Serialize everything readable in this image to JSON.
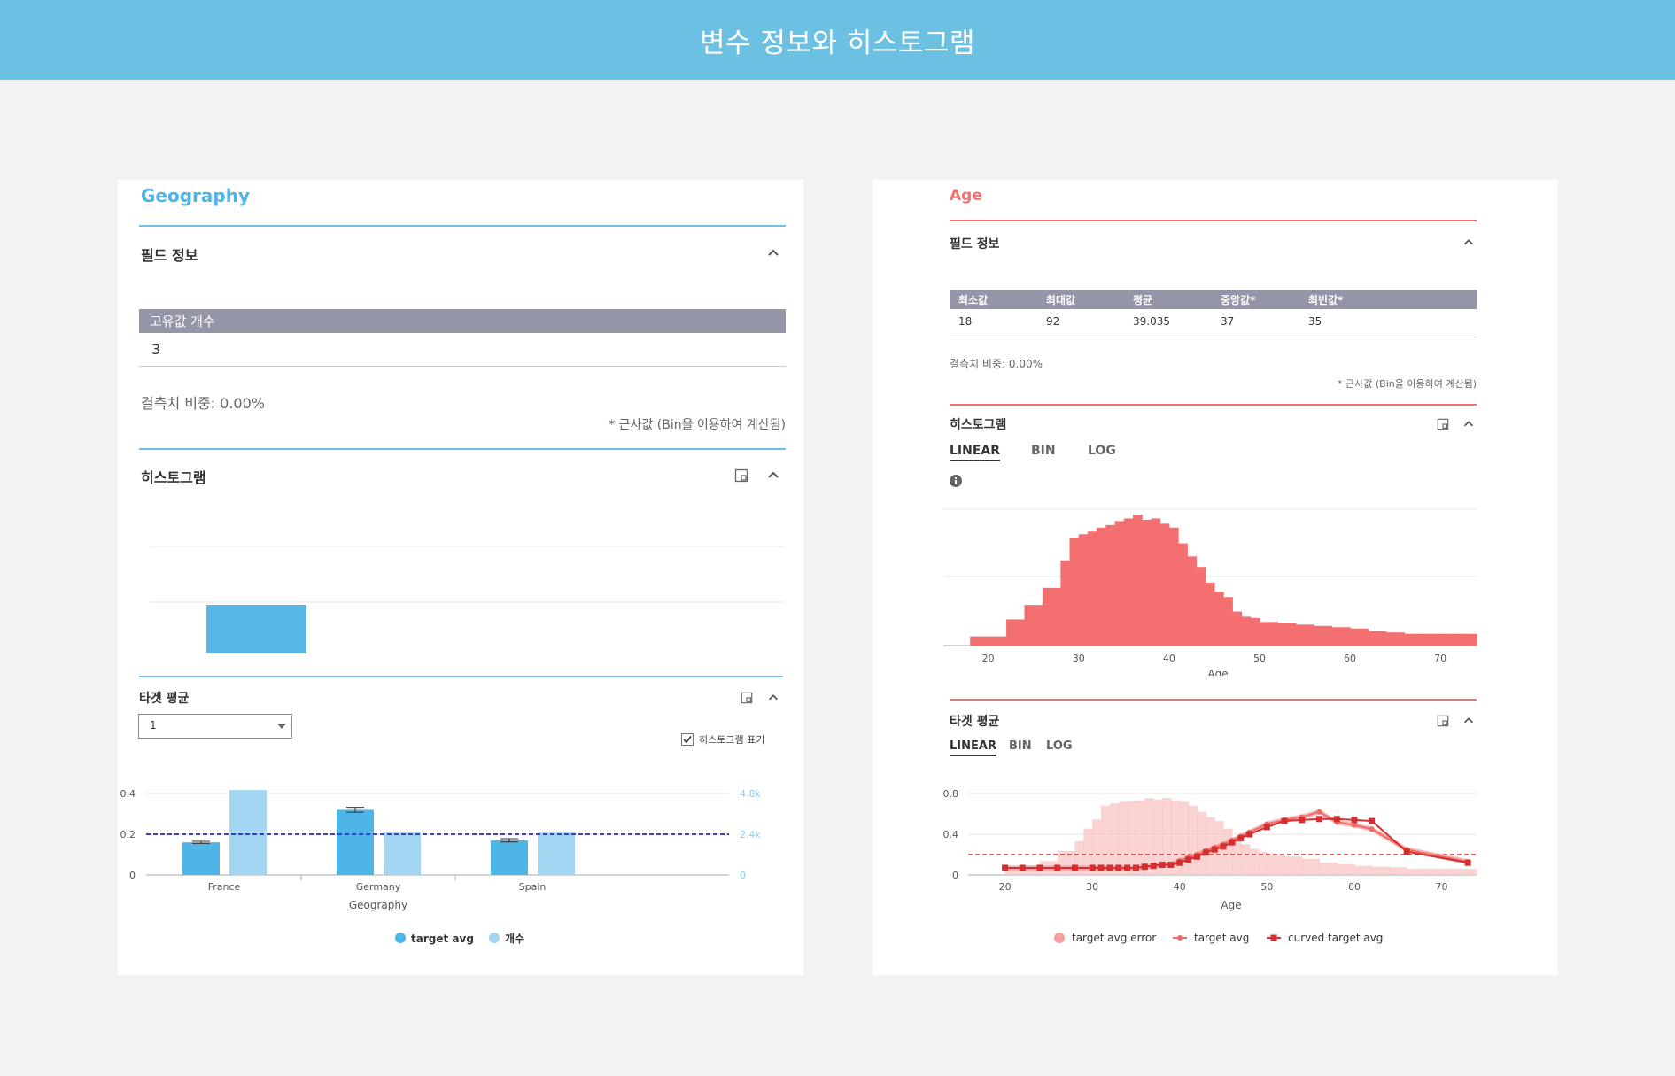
{
  "page": {
    "title": "변수 정보와 히스토그램"
  },
  "colors": {
    "header": "#6cc1e3",
    "blue": "#4fb4e6",
    "blue_light": "#a2d6f2",
    "red": "#f47070",
    "red_dark": "#d32f2f",
    "red_light": "#f9c4c4",
    "gray_header": "#9495a6",
    "avg_line_blue": "#3a3ae0"
  },
  "left": {
    "title": "Geography",
    "field_info": {
      "heading": "필드 정보",
      "unique_label": "고유값 개수",
      "unique_value": "3",
      "missing": "결측치 비중: 0.00%",
      "approx_note": "* 근사값 (Bin을 이용하여 계산됨)"
    },
    "histogram": {
      "heading": "히스토그램",
      "bar_value_fraction": 0.45
    },
    "target": {
      "heading": "타겟 평균",
      "select_value": "1",
      "checkbox_label": "히스토그램 표기",
      "checkbox_checked": true,
      "legend": [
        "target avg",
        "개수"
      ]
    }
  },
  "right": {
    "title": "Age",
    "field_info": {
      "heading": "필드 정보",
      "columns": [
        "최소값",
        "최대값",
        "평균",
        "중앙값*",
        "최빈값*"
      ],
      "values": [
        "18",
        "92",
        "39.035",
        "37",
        "35"
      ],
      "missing": "결측치 비중: 0.00%",
      "approx_note": "* 근사값 (Bin을 이용하여 계산됨)"
    },
    "histogram": {
      "heading": "히스토그램",
      "tabs": [
        "LINEAR",
        "BIN",
        "LOG"
      ],
      "active_tab": "LINEAR"
    },
    "target": {
      "heading": "타겟 평균",
      "tabs": [
        "LINEAR",
        "BIN",
        "LOG"
      ],
      "active_tab": "LINEAR",
      "legend": [
        "target avg error",
        "target avg",
        "curved target avg"
      ]
    }
  },
  "chart_data": [
    {
      "type": "bar",
      "xlabel": "Geography",
      "categories": [
        "France",
        "Germany",
        "Spain"
      ],
      "ylim": [
        0,
        0.4
      ],
      "yticks": [
        "0",
        "0.2",
        "0.4"
      ],
      "y2ticks": [
        "0",
        "2.4k",
        "4.8k"
      ],
      "y2lim": [
        0,
        4800
      ],
      "series": [
        {
          "name": "target avg",
          "values": [
            0.16,
            0.32,
            0.17
          ],
          "errors": [
            0.005,
            0.012,
            0.008
          ]
        },
        {
          "name": "개수",
          "values": [
            5000,
            2500,
            2500
          ]
        }
      ],
      "overall_avg": 0.2
    },
    {
      "type": "bar",
      "xlabel": "Age",
      "x": [
        18,
        20,
        22,
        24,
        26,
        28,
        29,
        30,
        31,
        32,
        33,
        34,
        35,
        36,
        37,
        38,
        39,
        40,
        41,
        42,
        43,
        44,
        45,
        46,
        47,
        48,
        49,
        50,
        52,
        54,
        56,
        58,
        60,
        62,
        64,
        66,
        68,
        70,
        72
      ],
      "values": [
        0.07,
        0.07,
        0.2,
        0.31,
        0.44,
        0.65,
        0.82,
        0.85,
        0.87,
        0.9,
        0.92,
        0.95,
        0.97,
        1.0,
        0.96,
        0.97,
        0.93,
        0.9,
        0.78,
        0.68,
        0.6,
        0.48,
        0.41,
        0.37,
        0.26,
        0.22,
        0.21,
        0.18,
        0.17,
        0.16,
        0.15,
        0.14,
        0.13,
        0.11,
        0.1,
        0.09,
        0.09,
        0.09,
        0.09
      ],
      "xticks": [
        20,
        30,
        40,
        50,
        60,
        70
      ],
      "xlim": [
        17,
        74
      ]
    },
    {
      "type": "line",
      "xlabel": "Age",
      "xticks": [
        20,
        30,
        40,
        50,
        60,
        70
      ],
      "yticks": [
        "0",
        "0.4",
        "0.8"
      ],
      "ylim": [
        0,
        0.8
      ],
      "xlim": [
        17,
        74
      ],
      "overall_avg": 0.2,
      "hist_x": [
        20,
        22,
        24,
        26,
        28,
        29,
        30,
        31,
        32,
        33,
        34,
        35,
        36,
        37,
        38,
        39,
        40,
        41,
        42,
        43,
        44,
        45,
        46,
        47,
        48,
        49,
        50,
        52,
        54,
        56,
        58,
        60,
        62,
        64,
        66,
        68,
        70,
        72
      ],
      "hist_values": [
        0.07,
        0.12,
        0.18,
        0.31,
        0.44,
        0.6,
        0.72,
        0.9,
        0.93,
        0.95,
        0.96,
        0.97,
        1.0,
        0.98,
        1.0,
        0.97,
        0.95,
        0.9,
        0.82,
        0.75,
        0.7,
        0.6,
        0.45,
        0.4,
        0.34,
        0.3,
        0.27,
        0.24,
        0.21,
        0.16,
        0.14,
        0.12,
        0.11,
        0.1,
        0.08,
        0.08,
        0.08,
        0.08
      ],
      "series": [
        {
          "name": "curved target avg",
          "x": [
            20,
            22,
            24,
            26,
            28,
            30,
            31,
            32,
            33,
            34,
            35,
            36,
            37,
            38,
            39,
            40,
            41,
            42,
            43,
            44,
            45,
            46,
            47,
            48,
            50,
            52,
            54,
            56,
            58,
            60,
            62,
            66,
            73
          ],
          "values": [
            0.07,
            0.07,
            0.07,
            0.07,
            0.07,
            0.07,
            0.07,
            0.07,
            0.07,
            0.07,
            0.07,
            0.08,
            0.09,
            0.1,
            0.1,
            0.12,
            0.15,
            0.18,
            0.22,
            0.25,
            0.28,
            0.32,
            0.36,
            0.4,
            0.47,
            0.53,
            0.54,
            0.55,
            0.55,
            0.54,
            0.53,
            0.23,
            0.12
          ]
        },
        {
          "name": "target avg",
          "x": [
            20,
            22,
            24,
            26,
            28,
            30,
            31,
            32,
            33,
            34,
            35,
            36,
            37,
            38,
            39,
            40,
            41,
            42,
            43,
            44,
            45,
            46,
            47,
            48,
            50,
            52,
            54,
            56,
            58,
            60,
            62,
            66,
            73
          ],
          "values": [
            0.07,
            0.07,
            0.07,
            0.07,
            0.07,
            0.07,
            0.07,
            0.07,
            0.07,
            0.07,
            0.07,
            0.08,
            0.09,
            0.1,
            0.1,
            0.14,
            0.17,
            0.2,
            0.24,
            0.27,
            0.3,
            0.34,
            0.38,
            0.42,
            0.5,
            0.54,
            0.57,
            0.62,
            0.52,
            0.49,
            0.45,
            0.25,
            0.13
          ]
        }
      ]
    }
  ]
}
